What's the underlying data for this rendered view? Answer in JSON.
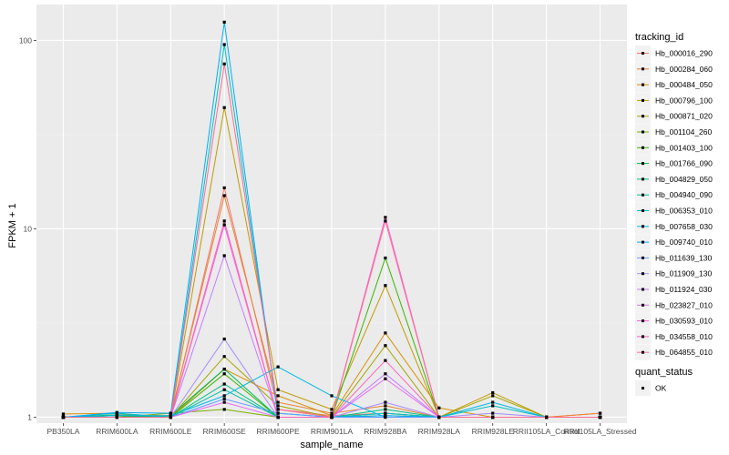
{
  "chart_data": {
    "type": "line",
    "xlabel": "sample_name",
    "ylabel": "FPKM + 1",
    "yscale": "log10",
    "ylim": [
      0.93,
      155
    ],
    "yticks": [
      1,
      10,
      100
    ],
    "ytick_labels": [
      "1",
      "10",
      "100"
    ],
    "grid": true,
    "legend_placement": "right",
    "categories": [
      "PB350LA",
      "RRIM600LA",
      "RRIM600LE",
      "RRIM600SE",
      "RRIM600PE",
      "RRIM901LA",
      "RRIM928BA",
      "RRIM928LA",
      "RRIM928LE",
      "RRII105LA_Control",
      "RRII105LA_Stressed"
    ],
    "legend_title": "tracking_id",
    "series": [
      {
        "name": "Hb_000016_290",
        "color": "#F8766D",
        "values": [
          1.0,
          1.02,
          1.0,
          16.5,
          1.1,
          1.02,
          1.05,
          1.0,
          1.0,
          1.0,
          1.05
        ]
      },
      {
        "name": "Hb_000284_060",
        "color": "#EA8331",
        "values": [
          1.0,
          1.03,
          1.02,
          15.0,
          1.2,
          1.05,
          1.15,
          1.0,
          1.0,
          1.0,
          1.05
        ]
      },
      {
        "name": "Hb_000484_050",
        "color": "#D89000",
        "values": [
          1.04,
          1.05,
          1.0,
          1.8,
          1.3,
          1.02,
          2.8,
          1.12,
          1.0,
          1.0,
          1.0
        ]
      },
      {
        "name": "Hb_000796_100",
        "color": "#C09B00",
        "values": [
          1.0,
          1.0,
          1.0,
          44.0,
          1.4,
          1.1,
          5.0,
          1.0,
          1.35,
          1.0,
          1.0
        ]
      },
      {
        "name": "Hb_000871_020",
        "color": "#A3A500",
        "values": [
          1.0,
          1.02,
          1.0,
          2.1,
          1.15,
          1.0,
          2.4,
          1.0,
          1.3,
          1.0,
          1.0
        ]
      },
      {
        "name": "Hb_001104_260",
        "color": "#7CAE00",
        "values": [
          1.0,
          1.0,
          1.05,
          1.1,
          1.0,
          1.0,
          1.02,
          1.0,
          1.0,
          1.0,
          1.0
        ]
      },
      {
        "name": "Hb_001403_100",
        "color": "#39B600",
        "values": [
          1.0,
          1.02,
          1.0,
          1.7,
          1.0,
          1.0,
          7.0,
          1.0,
          1.0,
          1.0,
          1.0
        ]
      },
      {
        "name": "Hb_001766_090",
        "color": "#00BB4E",
        "values": [
          1.0,
          1.0,
          1.02,
          1.8,
          1.0,
          1.0,
          1.05,
          1.0,
          1.0,
          1.0,
          1.0
        ]
      },
      {
        "name": "Hb_004829_050",
        "color": "#00BF7D",
        "values": [
          1.0,
          1.03,
          1.0,
          1.5,
          1.0,
          1.0,
          1.1,
          1.0,
          1.0,
          1.0,
          1.0
        ]
      },
      {
        "name": "Hb_004940_090",
        "color": "#00C1A3",
        "values": [
          1.0,
          1.0,
          1.0,
          1.4,
          1.0,
          1.0,
          1.0,
          1.0,
          1.0,
          1.0,
          1.0
        ]
      },
      {
        "name": "Hb_006353_010",
        "color": "#00BFC4",
        "values": [
          1.0,
          1.05,
          1.0,
          95.0,
          1.05,
          1.0,
          1.05,
          1.0,
          1.15,
          1.0,
          1.0
        ]
      },
      {
        "name": "Hb_007658_030",
        "color": "#00B8E5",
        "values": [
          1.0,
          1.02,
          1.02,
          1.3,
          1.85,
          1.3,
          1.0,
          1.0,
          1.2,
          1.0,
          1.0
        ]
      },
      {
        "name": "Hb_009740_010",
        "color": "#00ABFD",
        "values": [
          1.0,
          1.06,
          1.05,
          125.0,
          1.0,
          1.0,
          1.02,
          1.0,
          1.0,
          1.0,
          1.0
        ]
      },
      {
        "name": "Hb_011639_130",
        "color": "#619CFF",
        "values": [
          1.0,
          1.0,
          1.0,
          1.25,
          1.05,
          1.0,
          1.0,
          1.0,
          1.0,
          1.0,
          1.0
        ]
      },
      {
        "name": "Hb_011909_130",
        "color": "#A58AFF",
        "values": [
          1.0,
          1.0,
          1.0,
          2.6,
          1.0,
          1.0,
          1.2,
          1.0,
          1.05,
          1.0,
          1.0
        ]
      },
      {
        "name": "Hb_011924_030",
        "color": "#C77CFF",
        "values": [
          1.0,
          1.0,
          1.0,
          7.2,
          1.0,
          1.0,
          1.7,
          1.0,
          1.0,
          1.0,
          1.0
        ]
      },
      {
        "name": "Hb_023827_010",
        "color": "#E76BF3",
        "values": [
          1.0,
          1.0,
          1.0,
          1.2,
          1.0,
          1.0,
          1.6,
          1.0,
          1.0,
          1.0,
          1.0
        ]
      },
      {
        "name": "Hb_030593_010",
        "color": "#FA62DB",
        "values": [
          1.0,
          1.0,
          1.0,
          10.5,
          1.0,
          1.0,
          11.5,
          1.0,
          1.0,
          1.0,
          1.0
        ]
      },
      {
        "name": "Hb_034558_010",
        "color": "#FF62BC",
        "values": [
          1.0,
          1.0,
          1.0,
          11.0,
          1.0,
          1.0,
          2.0,
          1.0,
          1.0,
          1.0,
          1.0
        ]
      },
      {
        "name": "Hb_064855_010",
        "color": "#FF6C91",
        "values": [
          1.0,
          1.0,
          1.0,
          75.0,
          1.1,
          1.0,
          11.0,
          1.0,
          1.0,
          1.0,
          1.0
        ]
      }
    ],
    "legend2": {
      "title": "quant_status",
      "entries": [
        "OK"
      ]
    }
  }
}
